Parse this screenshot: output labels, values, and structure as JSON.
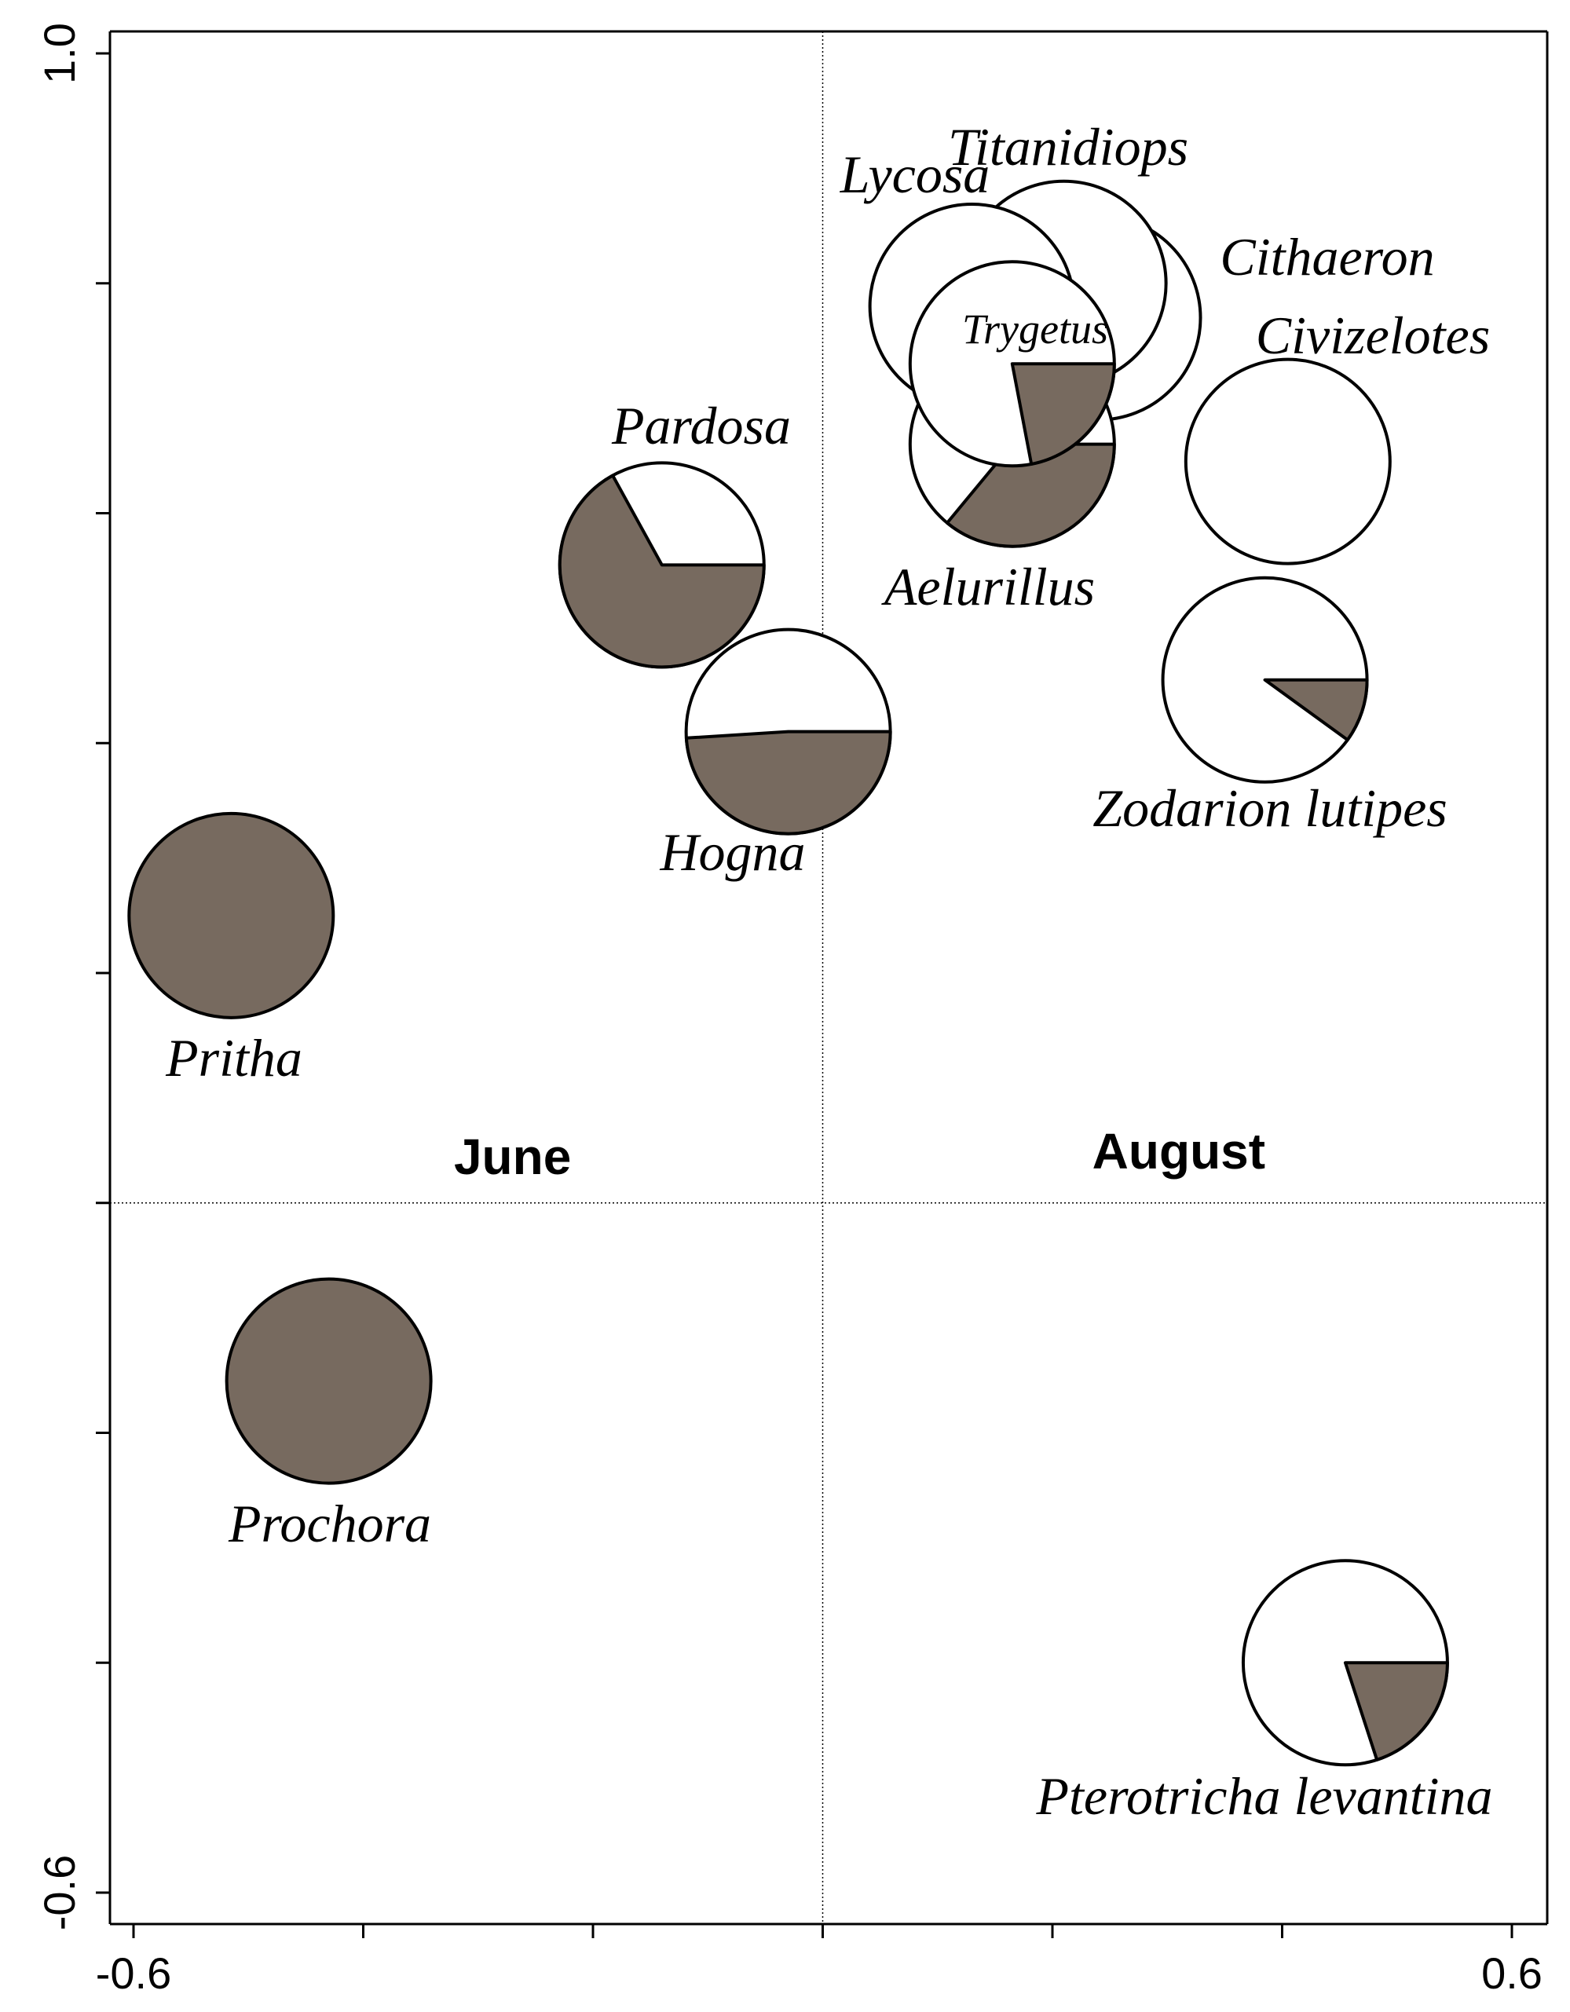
{
  "chart_data": {
    "type": "scatter",
    "title": "",
    "xlabel": "",
    "ylabel": "",
    "xlim": [
      -0.6,
      0.6
    ],
    "ylim": [
      -0.6,
      1.0
    ],
    "x_tick_labels": [
      "-0.6",
      "0.6"
    ],
    "y_tick_labels": [
      "-0.6",
      "1.0"
    ],
    "grid": false,
    "reference_lines": {
      "x": 0,
      "y": 0
    },
    "quadrant_labels": [
      {
        "text": "June",
        "x": -0.27,
        "y": 0.025
      },
      {
        "text": "August",
        "x": 0.31,
        "y": 0.03
      }
    ],
    "colors": {
      "june_fraction": "#776a5f",
      "august_fraction": "#ffffff",
      "outline": "#000000"
    },
    "pie_markers": [
      {
        "name": "Lycosa",
        "x": 0.13,
        "y": 0.78,
        "june_fraction": 0.0
      },
      {
        "name": "Titanidiops",
        "x": 0.21,
        "y": 0.8,
        "june_fraction": 0.0
      },
      {
        "name": "Cithaeron",
        "x": 0.24,
        "y": 0.77,
        "june_fraction": 0.0
      },
      {
        "name": "Aelurillus",
        "x": 0.165,
        "y": 0.66,
        "june_fraction": 0.36
      },
      {
        "name": "Trygetus",
        "x": 0.165,
        "y": 0.73,
        "june_fraction": 0.22
      },
      {
        "name": "Civizelotes",
        "x": 0.405,
        "y": 0.645,
        "june_fraction": 0.0
      },
      {
        "name": "Zodarion lutipes",
        "x": 0.385,
        "y": 0.455,
        "june_fraction": 0.1
      },
      {
        "name": "Pardosa",
        "x": -0.14,
        "y": 0.555,
        "june_fraction": 0.67
      },
      {
        "name": "Hogna",
        "x": -0.03,
        "y": 0.41,
        "june_fraction": 0.49
      },
      {
        "name": "Pritha",
        "x": -0.515,
        "y": 0.25,
        "june_fraction": 1.0
      },
      {
        "name": "Prochora",
        "x": -0.43,
        "y": -0.155,
        "june_fraction": 1.0
      },
      {
        "name": "Pterotricha levantina",
        "x": 0.455,
        "y": -0.4,
        "june_fraction": 0.2
      }
    ]
  }
}
